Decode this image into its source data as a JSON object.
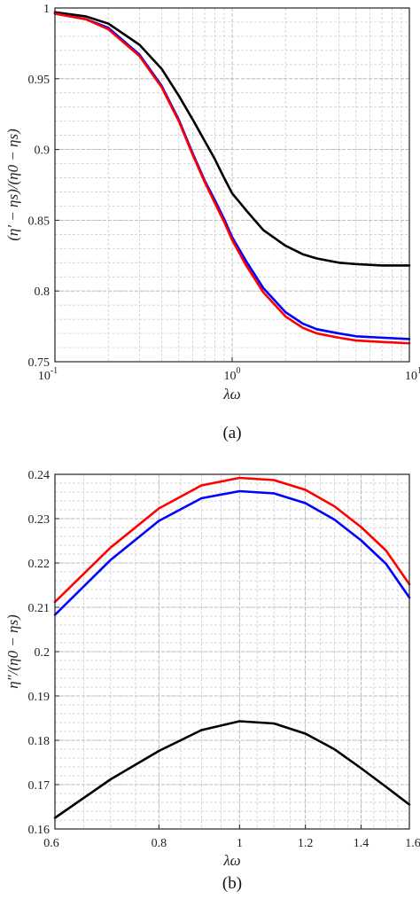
{
  "colors": {
    "black": "#000000",
    "blue": "#0000ff",
    "red": "#ff0000",
    "grid": "#c8c8c8"
  },
  "chart_data": [
    {
      "type": "line",
      "caption": "(a)",
      "xlabel": "λω",
      "ylabel": "(η′ − ηs)/(η0 − ηs)",
      "xscale": "log",
      "xlim": [
        0.1,
        10
      ],
      "ylim": [
        0.75,
        1.0
      ],
      "grid": true,
      "xticks": [
        0.1,
        1,
        10
      ],
      "xtick_labels": [
        {
          "base": "10",
          "exp": "-1"
        },
        {
          "base": "10",
          "exp": "0"
        },
        {
          "base": "10",
          "exp": "1"
        }
      ],
      "yticks": [
        0.75,
        0.8,
        0.85,
        0.9,
        0.95,
        1.0
      ],
      "ytick_labels": [
        "0.75",
        "0.8",
        "0.85",
        "0.9",
        "0.95",
        "1"
      ],
      "series": [
        {
          "color": "black",
          "x": [
            0.1,
            0.15,
            0.2,
            0.3,
            0.4,
            0.5,
            0.6,
            0.7,
            0.8,
            0.9,
            1.0,
            1.2,
            1.5,
            2.0,
            2.5,
            3.0,
            4.0,
            5.0,
            7.0,
            10.0
          ],
          "y": [
            0.997,
            0.994,
            0.989,
            0.974,
            0.957,
            0.938,
            0.921,
            0.906,
            0.893,
            0.88,
            0.869,
            0.857,
            0.843,
            0.832,
            0.826,
            0.823,
            0.82,
            0.819,
            0.818,
            0.818
          ]
        },
        {
          "color": "blue",
          "x": [
            0.1,
            0.15,
            0.2,
            0.3,
            0.4,
            0.5,
            0.6,
            0.7,
            0.8,
            0.9,
            1.0,
            1.2,
            1.5,
            2.0,
            2.5,
            3.0,
            4.0,
            5.0,
            7.0,
            10.0
          ],
          "y": [
            0.996,
            0.992,
            0.986,
            0.967,
            0.945,
            0.921,
            0.897,
            0.878,
            0.864,
            0.851,
            0.838,
            0.821,
            0.802,
            0.785,
            0.777,
            0.773,
            0.77,
            0.768,
            0.767,
            0.766
          ]
        },
        {
          "color": "red",
          "x": [
            0.1,
            0.15,
            0.2,
            0.3,
            0.4,
            0.5,
            0.6,
            0.7,
            0.8,
            0.9,
            1.0,
            1.2,
            1.5,
            2.0,
            2.5,
            3.0,
            4.0,
            5.0,
            7.0,
            10.0
          ],
          "y": [
            0.996,
            0.992,
            0.985,
            0.966,
            0.944,
            0.92,
            0.896,
            0.877,
            0.862,
            0.849,
            0.836,
            0.818,
            0.799,
            0.782,
            0.774,
            0.77,
            0.767,
            0.765,
            0.764,
            0.763
          ]
        }
      ]
    },
    {
      "type": "line",
      "caption": "(b)",
      "xlabel": "λω",
      "ylabel": "η″/(η0 − ηs)",
      "xscale": "log",
      "xlim": [
        0.6,
        1.6
      ],
      "ylim": [
        0.16,
        0.24
      ],
      "grid": true,
      "xticks": [
        0.6,
        0.8,
        1.0,
        1.2,
        1.4,
        1.6
      ],
      "xtick_labels": [
        "0.6",
        "0.8",
        "1",
        "1.2",
        "1.4",
        "1.6"
      ],
      "yticks": [
        0.16,
        0.17,
        0.18,
        0.19,
        0.2,
        0.21,
        0.22,
        0.23,
        0.24
      ],
      "ytick_labels": [
        "0.16",
        "0.17",
        "0.18",
        "0.19",
        "0.2",
        "0.21",
        "0.22",
        "0.23",
        "0.24"
      ],
      "series": [
        {
          "color": "black",
          "x": [
            0.6,
            0.7,
            0.8,
            0.9,
            1.0,
            1.1,
            1.2,
            1.3,
            1.4,
            1.5,
            1.6
          ],
          "y": [
            0.1625,
            0.1712,
            0.1776,
            0.1823,
            0.1843,
            0.1838,
            0.1815,
            0.178,
            0.1737,
            0.1695,
            0.1655
          ]
        },
        {
          "color": "blue",
          "x": [
            0.6,
            0.7,
            0.8,
            0.9,
            1.0,
            1.1,
            1.2,
            1.3,
            1.4,
            1.5,
            1.6
          ],
          "y": [
            0.2083,
            0.2207,
            0.2295,
            0.2346,
            0.2362,
            0.2357,
            0.2335,
            0.2298,
            0.2251,
            0.2198,
            0.2122
          ]
        },
        {
          "color": "red",
          "x": [
            0.6,
            0.7,
            0.8,
            0.9,
            1.0,
            1.1,
            1.2,
            1.3,
            1.4,
            1.5,
            1.6
          ],
          "y": [
            0.2112,
            0.2235,
            0.2323,
            0.2375,
            0.2392,
            0.2387,
            0.2365,
            0.2328,
            0.2281,
            0.2228,
            0.2152
          ]
        }
      ]
    }
  ]
}
